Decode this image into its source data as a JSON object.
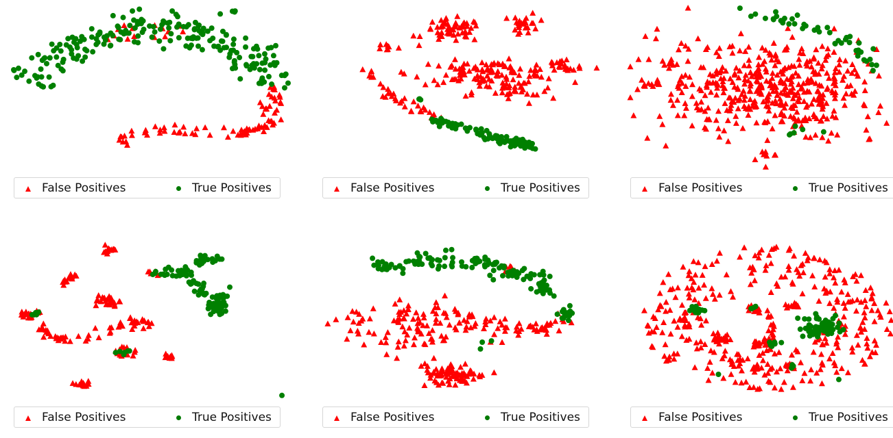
{
  "colors": {
    "false_positive": "#ff0000",
    "true_positive": "#008000"
  },
  "legend": {
    "false_label": "False Positives",
    "true_label": "True Positives"
  },
  "chart_data": [
    {
      "type": "scatter",
      "series": [
        {
          "name": "False Positives",
          "marker": "triangle",
          "clusters": [
            {
              "path": [
                [
                  -0.26,
                  -0.68
                ],
                [
                  -0.15,
                  -0.52
                ],
                [
                  0.35,
                  -0.52
                ],
                [
                  0.68,
                  -0.55
                ],
                [
                  0.84,
                  -0.45
                ],
                [
                  0.88,
                  -0.2
                ],
                [
                  0.9,
                  0.0
                ]
              ],
              "spread": 0.04,
              "n": 80
            },
            {
              "center": [
                -0.2,
                0.7
              ],
              "spread": [
                0.1,
                0.1
              ],
              "n": 8
            },
            {
              "center": [
                0.12,
                0.72
              ],
              "spread": [
                0.1,
                0.1
              ],
              "n": 8
            }
          ]
        },
        {
          "name": "True Positives",
          "marker": "circle",
          "clusters": [
            {
              "path": [
                [
                  -0.95,
                  0.1
                ],
                [
                  -0.7,
                  0.38
                ],
                [
                  -0.45,
                  0.62
                ],
                [
                  -0.1,
                  0.78
                ],
                [
                  0.25,
                  0.75
                ],
                [
                  0.55,
                  0.55
                ],
                [
                  0.8,
                  0.3
                ],
                [
                  0.85,
                  0.05
                ]
              ],
              "spread": 0.1,
              "n": 220
            },
            {
              "center": [
                0.6,
                0.95
              ],
              "spread": [
                0.02,
                0.02
              ],
              "n": 3
            }
          ]
        }
      ]
    },
    {
      "type": "scatter",
      "series": [
        {
          "name": "False Positives",
          "marker": "triangle",
          "clusters": [
            {
              "center": [
                -0.05,
                0.72
              ],
              "spread": [
                0.18,
                0.12
              ],
              "n": 55
            },
            {
              "center": [
                0.48,
                0.8
              ],
              "spread": [
                0.08,
                0.12
              ],
              "n": 25
            },
            {
              "center": [
                0.2,
                0.2
              ],
              "spread": [
                0.45,
                0.12
              ],
              "n": 110
            },
            {
              "center": [
                0.4,
                -0.05
              ],
              "spread": [
                0.25,
                0.12
              ],
              "n": 30
            },
            {
              "center": [
                0.75,
                0.28
              ],
              "spread": [
                0.12,
                0.1
              ],
              "n": 20
            },
            {
              "center": [
                -0.52,
                0.52
              ],
              "spread": [
                0.06,
                0.04
              ],
              "n": 8
            },
            {
              "path": [
                [
                  -0.68,
                  0.22
                ],
                [
                  -0.55,
                  -0.05
                ],
                [
                  -0.35,
                  -0.22
                ],
                [
                  -0.12,
                  -0.38
                ]
              ],
              "spread": 0.03,
              "n": 35
            }
          ]
        },
        {
          "name": "True Positives",
          "marker": "circle",
          "clusters": [
            {
              "path": [
                [
                  -0.2,
                  -0.38
                ],
                [
                  0.1,
                  -0.52
                ],
                [
                  0.38,
                  -0.66
                ],
                [
                  0.55,
                  -0.72
                ]
              ],
              "spread": 0.025,
              "n": 90
            },
            {
              "center": [
                -0.28,
                -0.12
              ],
              "spread": [
                0.02,
                0.02
              ],
              "n": 3
            }
          ]
        }
      ]
    },
    {
      "type": "scatter",
      "series": [
        {
          "name": "False Positives",
          "marker": "triangle",
          "clusters": [
            {
              "center": [
                0.05,
                0.0
              ],
              "spread": [
                0.68,
                0.5
              ],
              "n": 450
            },
            {
              "center": [
                -0.82,
                0.05
              ],
              "spread": [
                0.05,
                0.05
              ],
              "n": 10
            },
            {
              "center": [
                -0.7,
                0.3
              ],
              "spread": [
                0.05,
                0.05
              ],
              "n": 8
            },
            {
              "center": [
                0.0,
                -0.82
              ],
              "spread": [
                0.08,
                0.04
              ],
              "n": 8
            }
          ]
        },
        {
          "name": "True Positives",
          "marker": "circle",
          "clusters": [
            {
              "path": [
                [
                  -0.2,
                  0.95
                ],
                [
                  0.25,
                  0.8
                ],
                [
                  0.6,
                  0.6
                ],
                [
                  0.78,
                  0.3
                ]
              ],
              "spread": 0.04,
              "n": 45
            },
            {
              "center": [
                0.1,
                -0.55
              ],
              "spread": [
                0.2,
                0.1
              ],
              "n": 6
            }
          ]
        }
      ]
    },
    {
      "type": "scatter",
      "series": [
        {
          "name": "False Positives",
          "marker": "triangle",
          "clusters": [
            {
              "center": [
                -0.3,
                0.85
              ],
              "spread": [
                0.06,
                0.04
              ],
              "n": 18
            },
            {
              "center": [
                -0.6,
                0.48
              ],
              "spread": [
                0.05,
                0.05
              ],
              "n": 14
            },
            {
              "center": [
                -0.32,
                0.2
              ],
              "spread": [
                0.06,
                0.06
              ],
              "n": 26
            },
            {
              "center": [
                -0.88,
                0.05
              ],
              "spread": [
                0.07,
                0.06
              ],
              "n": 20
            },
            {
              "center": [
                -0.08,
                -0.05
              ],
              "spread": [
                0.08,
                0.05
              ],
              "n": 18
            },
            {
              "center": [
                -0.18,
                -0.42
              ],
              "spread": [
                0.07,
                0.05
              ],
              "n": 16
            },
            {
              "center": [
                0.15,
                -0.48
              ],
              "spread": [
                0.05,
                0.04
              ],
              "n": 10
            },
            {
              "center": [
                -0.5,
                -0.82
              ],
              "spread": [
                0.05,
                0.05
              ],
              "n": 14
            },
            {
              "path": [
                [
                  -0.8,
                  -0.12
                ],
                [
                  -0.7,
                  -0.25
                ],
                [
                  -0.55,
                  -0.28
                ],
                [
                  -0.4,
                  -0.2
                ],
                [
                  -0.2,
                  -0.1
                ]
              ],
              "spread": 0.025,
              "n": 40
            },
            {
              "center": [
                0.0,
                0.55
              ],
              "spread": [
                0.04,
                0.03
              ],
              "n": 6
            }
          ]
        },
        {
          "name": "True Positives",
          "marker": "circle",
          "clusters": [
            {
              "path": [
                [
                  0.0,
                  0.55
                ],
                [
                  0.25,
                  0.58
                ],
                [
                  0.38,
                  0.35
                ],
                [
                  0.45,
                  0.05
                ]
              ],
              "spread": 0.04,
              "n": 55
            },
            {
              "center": [
                0.5,
                0.2
              ],
              "spread": [
                0.05,
                0.15
              ],
              "n": 40
            },
            {
              "center": [
                0.45,
                0.72
              ],
              "spread": [
                0.1,
                0.05
              ],
              "n": 18
            },
            {
              "center": [
                0.95,
                -0.95
              ],
              "spread": [
                0.01,
                0.01
              ],
              "n": 1
            },
            {
              "center": [
                -0.85,
                0.05
              ],
              "spread": [
                0.03,
                0.03
              ],
              "n": 5
            },
            {
              "center": [
                -0.2,
                -0.43
              ],
              "spread": [
                0.05,
                0.03
              ],
              "n": 6
            }
          ]
        }
      ]
    },
    {
      "type": "scatter",
      "series": [
        {
          "name": "False Positives",
          "marker": "triangle",
          "clusters": [
            {
              "center": [
                -0.35,
                -0.1
              ],
              "spread": [
                0.4,
                0.25
              ],
              "n": 90
            },
            {
              "path": [
                [
                  -0.45,
                  0.08
                ],
                [
                  -0.1,
                  0.05
                ],
                [
                  0.2,
                  -0.05
                ],
                [
                  0.55,
                  -0.15
                ],
                [
                  0.78,
                  -0.02
                ]
              ],
              "spread": 0.05,
              "n": 70
            },
            {
              "center": [
                -0.05,
                -0.7
              ],
              "spread": [
                0.2,
                0.15
              ],
              "n": 80
            },
            {
              "center": [
                0.35,
                0.6
              ],
              "spread": [
                0.05,
                0.05
              ],
              "n": 6
            }
          ]
        },
        {
          "name": "True Positives",
          "marker": "circle",
          "clusters": [
            {
              "path": [
                [
                  -0.6,
                  0.65
                ],
                [
                  -0.2,
                  0.72
                ],
                [
                  0.2,
                  0.68
                ],
                [
                  0.5,
                  0.52
                ],
                [
                  0.65,
                  0.35
                ]
              ],
              "spread": 0.05,
              "n": 120
            },
            {
              "center": [
                0.78,
                0.05
              ],
              "spread": [
                0.04,
                0.06
              ],
              "n": 18
            },
            {
              "center": [
                0.2,
                -0.3
              ],
              "spread": [
                0.05,
                0.05
              ],
              "n": 3
            }
          ]
        }
      ]
    },
    {
      "type": "scatter",
      "series": [
        {
          "name": "False Positives",
          "marker": "triangle",
          "clusters": [
            {
              "ring": true,
              "center": [
                0,
                0
              ],
              "rx_out": 0.92,
              "ry_out": 0.9,
              "rx_in": 0.45,
              "ry_in": 0.3,
              "n": 320
            },
            {
              "center": [
                -0.35,
                -0.25
              ],
              "spread": [
                0.04,
                0.05
              ],
              "n": 15
            },
            {
              "center": [
                -0.08,
                -0.32
              ],
              "spread": [
                0.04,
                0.04
              ],
              "n": 10
            },
            {
              "center": [
                -0.1,
                0.1
              ],
              "spread": [
                0.05,
                0.04
              ],
              "n": 12
            },
            {
              "center": [
                0.18,
                0.15
              ],
              "spread": [
                0.04,
                0.04
              ],
              "n": 12
            },
            {
              "center": [
                0.15,
                -0.6
              ],
              "spread": [
                0.04,
                0.03
              ],
              "n": 12
            },
            {
              "center": [
                -0.08,
                -0.62
              ],
              "spread": [
                0.04,
                0.03
              ],
              "n": 10
            },
            {
              "path": [
                [
                  0.0,
                  0.08
                ],
                [
                  0.05,
                  -0.1
                ],
                [
                  0.0,
                  -0.3
                ],
                [
                  0.05,
                  -0.45
                ]
              ],
              "spread": 0.02,
              "n": 25
            }
          ]
        },
        {
          "name": "True Positives",
          "marker": "circle",
          "clusters": [
            {
              "center": [
                -0.52,
                0.1
              ],
              "spread": [
                0.04,
                0.04
              ],
              "n": 18
            },
            {
              "center": [
                0.4,
                -0.1
              ],
              "spread": [
                0.15,
                0.12
              ],
              "n": 55
            },
            {
              "center": [
                -0.35,
                -0.7
              ],
              "spread": [
                0.02,
                0.02
              ],
              "n": 1
            },
            {
              "center": [
                0.5,
                -0.75
              ],
              "spread": [
                0.02,
                0.02
              ],
              "n": 1
            },
            {
              "center": [
                0.05,
                -0.3
              ],
              "spread": [
                0.04,
                0.04
              ],
              "n": 6
            },
            {
              "center": [
                -0.1,
                0.12
              ],
              "spread": [
                0.03,
                0.03
              ],
              "n": 4
            },
            {
              "center": [
                0.15,
                -0.6
              ],
              "spread": [
                0.03,
                0.03
              ],
              "n": 3
            }
          ]
        }
      ]
    }
  ]
}
